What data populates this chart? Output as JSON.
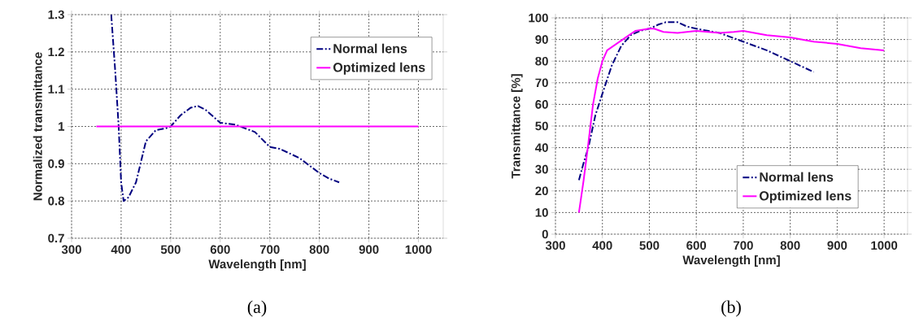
{
  "chart_data": [
    {
      "type": "line",
      "xlabel": "Wavelength [nm]",
      "ylabel": "Normalized transmittance",
      "xlim": [
        300,
        1050
      ],
      "xticks": [
        300,
        400,
        500,
        600,
        700,
        800,
        900,
        1000
      ],
      "ylim": [
        0.7,
        1.3
      ],
      "yticks": [
        0.7,
        0.8,
        0.9,
        1,
        1.1,
        1.2,
        1.3
      ],
      "grid": true,
      "legend": "top right",
      "annotations": [
        "(a)"
      ],
      "series": [
        {
          "name": "Normal lens",
          "color": "#000080",
          "line_style": "dashdot",
          "x": [
            380,
            388,
            395,
            400,
            405,
            415,
            430,
            450,
            470,
            490,
            500,
            520,
            540,
            555,
            570,
            600,
            630,
            650,
            670,
            700,
            720,
            760,
            800,
            820,
            840
          ],
          "values": [
            1.3,
            1.15,
            1.0,
            0.85,
            0.8,
            0.81,
            0.85,
            0.96,
            0.99,
            0.995,
            1.0,
            1.03,
            1.05,
            1.055,
            1.045,
            1.01,
            1.005,
            0.995,
            0.985,
            0.945,
            0.94,
            0.915,
            0.875,
            0.86,
            0.85
          ]
        },
        {
          "name": "Optimized lens",
          "color": "#ff00ff",
          "line_style": "solid",
          "x": [
            350,
            1000
          ],
          "values": [
            1,
            1
          ]
        }
      ]
    },
    {
      "type": "line",
      "xlabel": "Wavelength [nm]",
      "ylabel": "Transmittance [%]",
      "xlim": [
        300,
        1050
      ],
      "xticks": [
        300,
        400,
        500,
        600,
        700,
        800,
        900,
        1000
      ],
      "ylim": [
        0,
        100
      ],
      "yticks": [
        0,
        10,
        20,
        30,
        40,
        50,
        60,
        70,
        80,
        90,
        100
      ],
      "grid": true,
      "legend": "bottom right",
      "annotations": [
        "(b)"
      ],
      "series": [
        {
          "name": "Normal lens",
          "color": "#000080",
          "line_style": "dashdot",
          "x": [
            350,
            360,
            370,
            385,
            400,
            420,
            440,
            460,
            480,
            500,
            520,
            535,
            560,
            580,
            600,
            650,
            700,
            750,
            800,
            850
          ],
          "values": [
            25,
            33,
            40,
            55,
            65,
            78,
            87,
            92,
            94,
            95,
            97,
            98,
            98,
            96,
            95,
            93,
            89,
            85,
            80,
            75
          ]
        },
        {
          "name": "Optimized lens",
          "color": "#ff00ff",
          "line_style": "solid",
          "x": [
            350,
            360,
            370,
            380,
            390,
            400,
            410,
            430,
            450,
            470,
            500,
            510,
            530,
            560,
            600,
            650,
            680,
            700,
            750,
            800,
            850,
            900,
            950,
            1000
          ],
          "values": [
            10,
            25,
            42,
            60,
            72,
            80,
            85,
            88,
            91,
            94,
            95,
            95,
            93.5,
            93,
            94,
            93,
            93.5,
            94,
            92,
            91,
            89,
            88,
            86,
            85
          ]
        }
      ]
    }
  ]
}
